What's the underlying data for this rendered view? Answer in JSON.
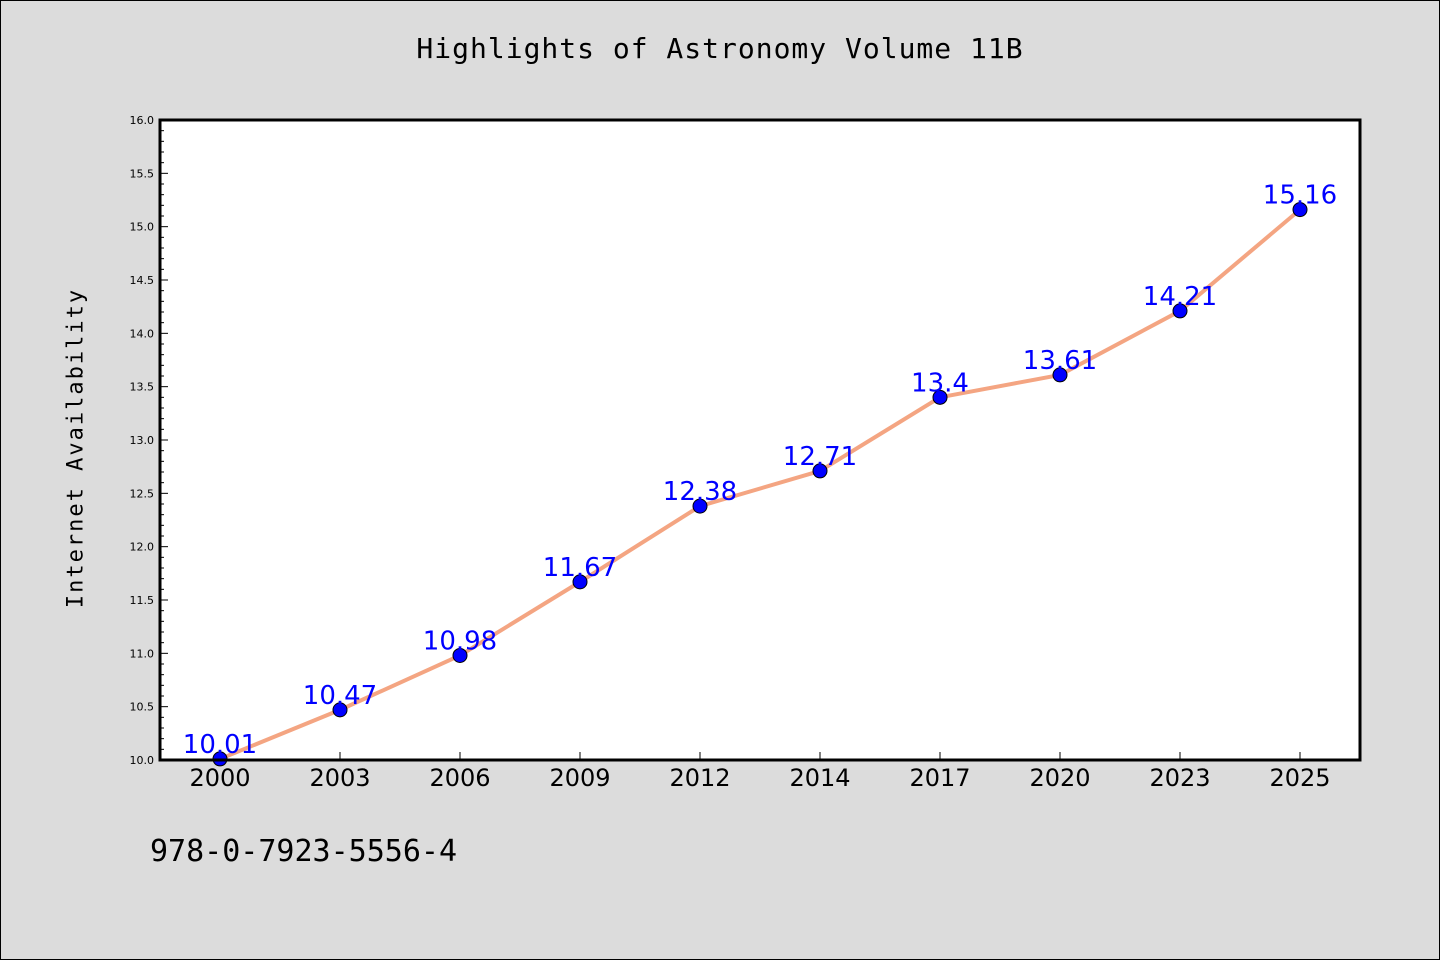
{
  "chart_data": {
    "type": "line",
    "title": "Highlights of Astronomy Volume 11B",
    "xlabel": "",
    "ylabel": "Internet Availability",
    "categories": [
      "2000",
      "2003",
      "2006",
      "2009",
      "2012",
      "2014",
      "2017",
      "2020",
      "2023",
      "2025"
    ],
    "series": [
      {
        "values": [
          10.01,
          10.47,
          10.98,
          11.67,
          12.38,
          12.71,
          13.4,
          13.61,
          14.21,
          15.16
        ]
      }
    ],
    "data_labels": [
      "10.01",
      "10.47",
      "10.98",
      "11.67",
      "12.38",
      "12.71",
      "13.4",
      "13.61",
      "14.21",
      "15.16"
    ],
    "ylim": [
      10.0,
      16.0
    ],
    "yticks": [
      "10.0",
      "10.5",
      "11.0",
      "11.5",
      "12.0",
      "12.5",
      "13.0",
      "13.5",
      "14.0",
      "14.5",
      "15.0",
      "15.5",
      "16.0"
    ],
    "grid": false,
    "legend": "none",
    "line_color": "#f4a582",
    "marker_color": "#0000ff",
    "label_color": "#0000ff"
  },
  "footnote": "978-0-7923-5556-4"
}
